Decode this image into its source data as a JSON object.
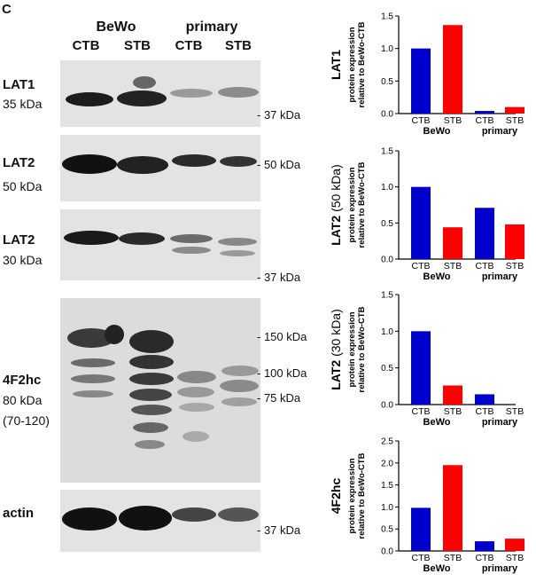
{
  "panel_letter": "C",
  "header": {
    "groups": [
      "BeWo",
      "primary"
    ],
    "lanes": [
      "CTB",
      "STB",
      "CTB",
      "STB"
    ]
  },
  "blots": [
    {
      "protein": "LAT1",
      "size": "35 kDa",
      "markers": [
        "- 37 kDa"
      ]
    },
    {
      "protein": "LAT2",
      "size": "50 kDa",
      "markers": [
        "- 50 kDa"
      ]
    },
    {
      "protein": "LAT2",
      "size": "30 kDa",
      "markers": [
        "- 37 kDa"
      ]
    },
    {
      "protein": "4F2hc",
      "size": "80 kDa",
      "size_range": "(70-120)",
      "markers": [
        "- 150 kDa",
        "- 100 kDa",
        "- 75 kDa"
      ]
    },
    {
      "protein": "actin",
      "markers": [
        "- 37 kDa"
      ]
    }
  ],
  "colors": {
    "ctb": "#0000cc",
    "stb": "#ff0000"
  },
  "chart_data": [
    {
      "type": "bar",
      "title": "LAT1",
      "ylabel": "protein expression relative to BeWo-CTB",
      "categories": [
        "CTB",
        "STB",
        "CTB",
        "STB"
      ],
      "groups": [
        "BeWo",
        "primary"
      ],
      "values": [
        1.0,
        1.36,
        0.04,
        0.1
      ],
      "ylim": [
        0,
        1.5
      ],
      "yticks": [
        "0.0",
        "0.5",
        "1.0",
        "1.5"
      ]
    },
    {
      "type": "bar",
      "title_bold": "LAT2",
      "title_suffix": "(50 kDa)",
      "ylabel": "protein expression relative to BeWo-CTB",
      "categories": [
        "CTB",
        "STB",
        "CTB",
        "STB"
      ],
      "groups": [
        "BeWo",
        "primary"
      ],
      "values": [
        1.0,
        0.44,
        0.71,
        0.48
      ],
      "ylim": [
        0,
        1.5
      ],
      "yticks": [
        "0.0",
        "0.5",
        "1.0",
        "1.5"
      ]
    },
    {
      "type": "bar",
      "title_bold": "LAT2",
      "title_suffix": "(30 kDa)",
      "ylabel": "protein expression relative to BeWo-CTB",
      "categories": [
        "CTB",
        "STB",
        "CTB",
        "STB"
      ],
      "groups": [
        "BeWo",
        "primary"
      ],
      "values": [
        1.0,
        0.26,
        0.14,
        0.0
      ],
      "ylim": [
        0,
        1.5
      ],
      "yticks": [
        "0.0",
        "0.5",
        "1.0",
        "1.5"
      ]
    },
    {
      "type": "bar",
      "title": "4F2hc",
      "ylabel": "protein expression relative to BeWo-CTB",
      "categories": [
        "CTB",
        "STB",
        "CTB",
        "STB"
      ],
      "groups": [
        "BeWo",
        "primary"
      ],
      "values": [
        0.98,
        1.95,
        0.22,
        0.28
      ],
      "ylim": [
        0,
        2.5
      ],
      "yticks": [
        "0.0",
        "0.5",
        "1.0",
        "1.5",
        "2.0",
        "2.5"
      ]
    }
  ]
}
